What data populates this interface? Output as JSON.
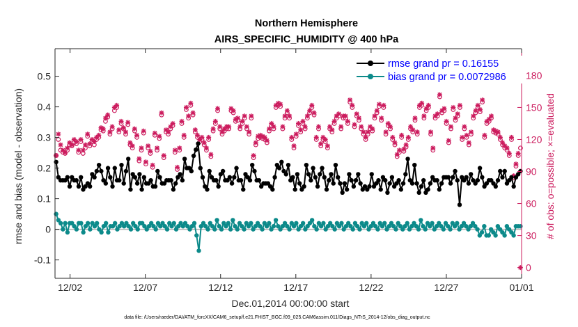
{
  "chart_data": {
    "type": "line",
    "title": "Northern Hemisphere",
    "subtitle": "AIRS_SPECIFIC_HUMIDITY @ 400 hPa",
    "xlabel": "Dec.01,2014 00:00:00 start",
    "ylabel": "rmse and bias (model - observation)",
    "ylabel_right": "# of obs: o=possible; ×=evaluated",
    "footer": "data file: /Users/raeder/DAI/ATM_forcXX/CAM6_setup/f.e21.FHIST_BGC.f09_025.CAM6assim.011/Diags_NTrS_2014-12/obs_diag_output.nc",
    "x_ticks": [
      "12/02",
      "12/07",
      "12/12",
      "12/17",
      "12/22",
      "12/27",
      "01/01"
    ],
    "x_tick_days": [
      1,
      6,
      11,
      16,
      21,
      26,
      31
    ],
    "x_unit": "days since Dec.01,2014 00:00:00",
    "xlim": [
      0,
      31
    ],
    "ylim": [
      -0.16,
      0.59
    ],
    "y_ticks": [
      -0.1,
      0,
      0.1,
      0.2,
      0.3,
      0.4,
      0.5
    ],
    "y_tick_labels": [
      "-0.1",
      "0",
      "0.1",
      "0.2",
      "0.3",
      "0.4",
      "0.5"
    ],
    "ylim_right": [
      -10,
      205
    ],
    "y_ticks_right": [
      0,
      30,
      60,
      90,
      120,
      150,
      180
    ],
    "grid": false,
    "legend_position": "top-right",
    "colors": {
      "rmse": "#000000",
      "bias": "#0c8a8a",
      "obs": "#cc1c5e",
      "zero_line": "#b3b3b3",
      "legend_text": "#0000ff"
    },
    "series": [
      {
        "name": "rmse grand pr = 0.16155",
        "key": "rmse",
        "values": [
          0.22,
          0.17,
          0.16,
          0.16,
          0.16,
          0.17,
          0.14,
          0.17,
          0.16,
          0.16,
          0.14,
          0.17,
          0.13,
          0.14,
          0.15,
          0.14,
          0.18,
          0.17,
          0.19,
          0.21,
          0.19,
          0.16,
          0.15,
          0.2,
          0.17,
          0.14,
          0.2,
          0.16,
          0.16,
          0.21,
          0.15,
          0.19,
          0.23,
          0.13,
          0.18,
          0.17,
          0.15,
          0.18,
          0.13,
          0.17,
          0.15,
          0.15,
          0.16,
          0.14,
          0.14,
          0.19,
          0.17,
          0.15,
          0.15,
          0.16,
          0.16,
          0.16,
          0.13,
          0.15,
          0.17,
          0.18,
          0.16,
          0.23,
          0.2,
          0.2,
          0.19,
          0.24,
          0.26,
          0.28,
          0.2,
          0.17,
          0.14,
          0.13,
          0.19,
          0.17,
          0.16,
          0.16,
          0.14,
          0.18,
          0.19,
          0.16,
          0.16,
          0.17,
          0.15,
          0.17,
          0.2,
          0.16,
          0.16,
          0.13,
          0.18,
          0.17,
          0.16,
          0.21,
          0.19,
          0.16,
          0.16,
          0.14,
          0.15,
          0.15,
          0.15,
          0.14,
          0.13,
          0.17,
          0.21,
          0.2,
          0.22,
          0.19,
          0.18,
          0.21,
          0.16,
          0.17,
          0.13,
          0.18,
          0.15,
          0.13,
          0.14,
          0.21,
          0.18,
          0.16,
          0.2,
          0.17,
          0.14,
          0.18,
          0.2,
          0.17,
          0.13,
          0.16,
          0.18,
          0.15,
          0.21,
          0.17,
          0.15,
          0.12,
          0.15,
          0.13,
          0.18,
          0.16,
          0.14,
          0.16,
          0.18,
          0.15,
          0.13,
          0.14,
          0.13,
          0.14,
          0.18,
          0.14,
          0.15,
          0.16,
          0.13,
          0.17,
          0.16,
          0.12,
          0.15,
          0.17,
          0.14,
          0.15,
          0.16,
          0.13,
          0.15,
          0.18,
          0.23,
          0.16,
          0.15,
          0.21,
          0.15,
          0.12,
          0.14,
          0.16,
          0.12,
          0.13,
          0.15,
          0.17,
          0.16,
          0.16,
          0.13,
          0.15,
          0.17,
          0.17,
          0.17,
          0.15,
          0.17,
          0.19,
          0.16,
          0.08,
          0.17,
          0.16,
          0.17,
          0.15,
          0.18,
          0.16,
          0.15,
          0.16,
          0.2,
          0.17,
          0.14,
          0.15,
          0.16,
          0.16,
          0.15,
          0.14,
          0.16,
          0.19,
          0.17,
          0.19,
          0.15,
          0.16,
          0.17,
          0.14,
          0.17,
          0.18,
          0.19
        ]
      },
      {
        "name": "bias grand pr = 0.0072986",
        "key": "bias",
        "values": [
          0.05,
          0.03,
          0.02,
          0.0,
          0.02,
          -0.01,
          0.02,
          0.02,
          0.01,
          0.0,
          0.02,
          0.02,
          -0.01,
          0.01,
          0.02,
          0.0,
          0.02,
          0.01,
          0.02,
          0.0,
          -0.01,
          0.01,
          0.02,
          -0.01,
          0.01,
          0.01,
          0.02,
          0.0,
          0.01,
          0.02,
          0.01,
          0.02,
          0.01,
          0.0,
          0.02,
          0.01,
          0.0,
          0.02,
          0.02,
          0.01,
          0.0,
          0.01,
          0.02,
          0.01,
          0.0,
          0.02,
          0.01,
          0.02,
          0.01,
          0.0,
          0.02,
          0.01,
          0.02,
          0.0,
          0.01,
          0.02,
          0.01,
          0.02,
          0.01,
          0.0,
          0.01,
          0.02,
          -0.02,
          -0.07,
          0.01,
          0.02,
          0.01,
          0.0,
          0.02,
          0.01,
          0.0,
          0.03,
          0.01,
          0.0,
          0.02,
          0.01,
          0.02,
          0.0,
          0.03,
          0.01,
          0.0,
          0.02,
          0.01,
          0.0,
          0.02,
          0.01,
          0.02,
          0.0,
          0.01,
          0.02,
          0.01,
          0.0,
          0.02,
          0.01,
          0.02,
          0.0,
          0.01,
          0.03,
          0.01,
          0.0,
          0.01,
          0.02,
          0.01,
          0.0,
          0.02,
          0.01,
          0.02,
          0.0,
          0.01,
          0.02,
          0.0,
          0.01,
          0.02,
          0.03,
          0.01,
          0.0,
          0.02,
          0.01,
          0.02,
          0.0,
          0.01,
          0.02,
          0.01,
          0.0,
          0.02,
          0.01,
          0.02,
          0.0,
          0.01,
          0.02,
          0.01,
          0.0,
          0.02,
          0.01,
          0.0,
          0.02,
          0.01,
          0.02,
          0.0,
          0.01,
          0.02,
          0.01,
          0.0,
          0.02,
          0.01,
          0.02,
          0.0,
          0.01,
          0.02,
          0.01,
          0.0,
          0.02,
          0.01,
          0.0,
          0.01,
          0.02,
          0.0,
          0.01,
          0.02,
          0.01,
          0.0,
          0.03,
          0.01,
          0.0,
          0.02,
          0.01,
          0.02,
          0.0,
          0.01,
          0.02,
          0.01,
          0.0,
          0.02,
          0.01,
          0.0,
          0.02,
          0.01,
          0.02,
          0.0,
          0.01,
          0.02,
          0.01,
          0.0,
          0.01,
          0.02,
          0.01,
          0.0,
          -0.02,
          -0.01,
          0.01,
          -0.02,
          -0.02,
          0.0,
          -0.01,
          -0.02,
          0.01,
          0.0,
          -0.01,
          -0.02,
          0.01,
          0.0,
          -0.01,
          -0.02,
          0.01,
          0.01,
          0.01
        ]
      }
    ],
    "obs_possible": [
      105,
      120,
      110,
      108,
      107,
      110,
      115,
      114,
      117,
      116,
      108,
      118,
      107,
      112,
      123,
      114,
      118,
      115,
      120,
      122,
      129,
      128,
      137,
      141,
      125,
      130,
      147,
      150,
      127,
      135,
      130,
      125,
      134,
      115,
      112,
      128,
      122,
      100,
      110,
      126,
      97,
      112,
      107,
      94,
      124,
      110,
      121,
      143,
      103,
      127,
      125,
      130,
      133,
      108,
      92,
      110,
      135,
      122,
      148,
      140,
      152,
      143,
      127,
      122,
      118,
      120,
      115,
      110,
      120,
      104,
      128,
      135,
      147,
      130,
      125,
      128,
      130,
      130,
      147,
      145,
      137,
      138,
      130,
      135,
      140,
      130,
      125,
      140,
      103,
      115,
      121,
      122,
      121,
      120,
      117,
      128,
      133,
      130,
      150,
      152,
      151,
      130,
      140,
      145,
      140,
      120,
      112,
      123,
      133,
      127,
      135,
      130,
      140,
      145,
      150,
      143,
      120,
      130,
      114,
      120,
      118,
      112,
      130,
      127,
      135,
      140,
      142,
      130,
      140,
      140,
      135,
      155,
      150,
      132,
      142,
      138,
      130,
      125,
      120,
      125,
      130,
      128,
      140,
      145,
      151,
      138,
      150,
      125,
      133,
      130,
      120,
      115,
      104,
      108,
      122,
      109,
      113,
      120,
      130,
      127,
      138,
      125,
      150,
      152,
      140,
      147,
      150,
      125,
      110,
      140,
      142,
      160,
      145,
      147,
      135,
      117,
      130,
      148,
      138,
      142,
      150,
      120,
      130,
      122,
      115,
      125,
      140,
      145,
      150,
      146,
      155,
      122,
      135,
      137,
      140,
      127,
      126,
      125,
      120,
      115,
      112,
      110,
      105,
      120,
      84,
      95,
      105,
      112
    ],
    "obs_evaluated": [
      105,
      125,
      115,
      110,
      108,
      112,
      117,
      115,
      120,
      118,
      110,
      120,
      110,
      115,
      125,
      116,
      120,
      118,
      122,
      124,
      131,
      130,
      140,
      143,
      127,
      132,
      150,
      152,
      129,
      137,
      131,
      127,
      136,
      117,
      114,
      130,
      124,
      102,
      112,
      128,
      99,
      114,
      109,
      96,
      126,
      112,
      123,
      145,
      105,
      129,
      127,
      132,
      135,
      110,
      94,
      112,
      137,
      124,
      150,
      142,
      154,
      145,
      129,
      124,
      120,
      122,
      117,
      112,
      122,
      106,
      130,
      137,
      149,
      132,
      127,
      130,
      132,
      132,
      149,
      147,
      139,
      140,
      132,
      137,
      142,
      132,
      127,
      142,
      105,
      117,
      123,
      124,
      123,
      122,
      119,
      130,
      135,
      132,
      152,
      154,
      153,
      132,
      142,
      147,
      142,
      122,
      114,
      125,
      135,
      129,
      137,
      132,
      142,
      147,
      152,
      145,
      122,
      132,
      116,
      122,
      120,
      114,
      132,
      129,
      137,
      142,
      144,
      132,
      142,
      142,
      137,
      157,
      152,
      134,
      144,
      140,
      132,
      127,
      122,
      127,
      132,
      130,
      142,
      147,
      153,
      140,
      152,
      127,
      135,
      132,
      122,
      117,
      106,
      110,
      124,
      111,
      115,
      122,
      132,
      129,
      140,
      127,
      152,
      154,
      142,
      149,
      152,
      127,
      112,
      142,
      144,
      162,
      147,
      149,
      137,
      119,
      132,
      150,
      140,
      144,
      152,
      122,
      132,
      124,
      117,
      127,
      142,
      147,
      152,
      148,
      157,
      124,
      137,
      139,
      142,
      129,
      128,
      127,
      122,
      117,
      114,
      112,
      107,
      122,
      86,
      97,
      107,
      0
    ]
  }
}
